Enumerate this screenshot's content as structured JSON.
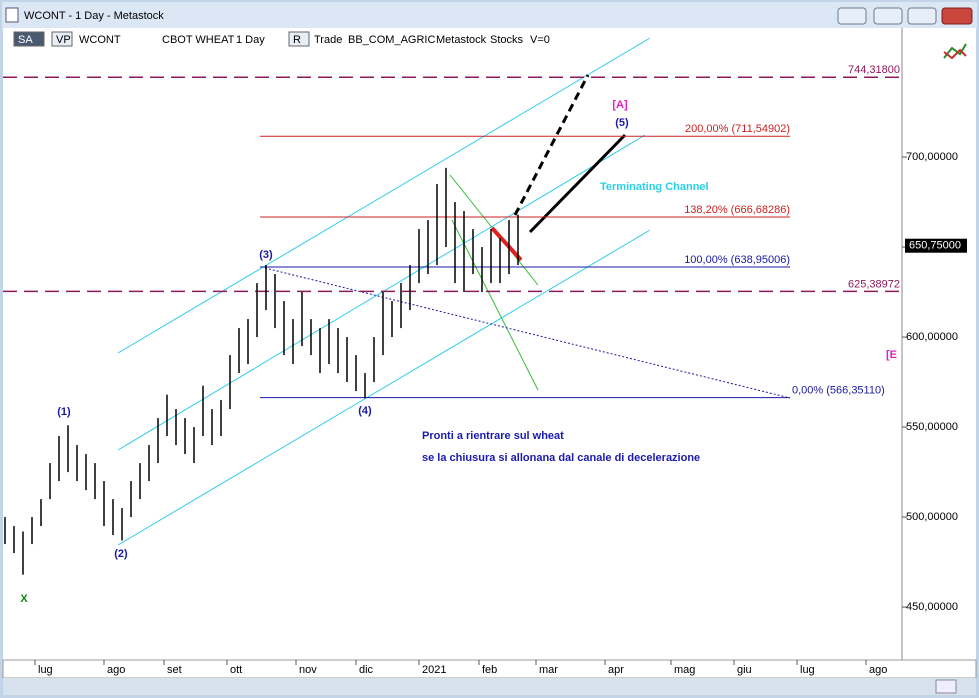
{
  "window": {
    "title": "WCONT - 1 Day - Metastock",
    "toolbar": [
      "SA",
      "VP",
      "WCONT",
      "CBOT WHEAT",
      "1 Day",
      "R",
      "Trade",
      "BB_COM_AGRIC",
      "Metastock",
      "Stocks",
      "V=0"
    ]
  },
  "chart_data": {
    "type": "ohlc",
    "x": [
      -10,
      -7,
      -4,
      -1,
      2,
      5,
      8,
      11,
      14,
      17,
      20,
      23,
      26,
      29,
      32,
      35,
      38,
      41,
      44,
      47,
      50,
      53,
      56,
      59,
      62,
      65,
      68,
      71,
      74,
      77,
      80,
      83,
      86,
      89,
      92,
      95,
      98,
      101,
      104,
      107,
      110,
      113,
      116,
      119,
      122,
      125,
      128,
      131,
      134,
      137,
      140,
      143,
      146,
      149,
      152,
      155,
      158,
      161
    ],
    "low": [
      485,
      480,
      468,
      485,
      495,
      510,
      520,
      525,
      520,
      515,
      510,
      495,
      490,
      487,
      500,
      510,
      520,
      530,
      545,
      540,
      535,
      530,
      545,
      540,
      545,
      560,
      580,
      585,
      600,
      615,
      605,
      590,
      585,
      595,
      590,
      580,
      585,
      580,
      575,
      570,
      566,
      575,
      590,
      600,
      605,
      615,
      630,
      635,
      640,
      650,
      630,
      625,
      635,
      625,
      630,
      630,
      635,
      640
    ],
    "high": [
      500,
      495,
      492,
      500,
      510,
      530,
      545,
      551,
      540,
      535,
      530,
      520,
      510,
      505,
      520,
      530,
      540,
      555,
      568,
      560,
      555,
      550,
      573,
      560,
      565,
      590,
      605,
      610,
      630,
      640,
      635,
      620,
      610,
      625,
      610,
      605,
      610,
      605,
      600,
      590,
      580,
      600,
      625,
      620,
      630,
      640,
      660,
      665,
      685,
      694,
      675,
      670,
      660,
      650,
      660,
      655,
      665,
      668
    ],
    "xlim": [
      -10,
      289
    ],
    "xticks": [
      {
        "value": 0,
        "label": "lug"
      },
      {
        "value": 23,
        "label": "ago"
      },
      {
        "value": 43,
        "label": "set"
      },
      {
        "value": 64,
        "label": "ott"
      },
      {
        "value": 87,
        "label": "nov"
      },
      {
        "value": 107,
        "label": "dic"
      },
      {
        "value": 128,
        "label": "2021"
      },
      {
        "value": 148,
        "label": "feb"
      },
      {
        "value": 167,
        "label": "mar"
      },
      {
        "value": 190,
        "label": "apr"
      },
      {
        "value": 212,
        "label": "mag"
      },
      {
        "value": 233,
        "label": "giu"
      },
      {
        "value": 254,
        "label": "lug"
      },
      {
        "value": 277,
        "label": "ago"
      }
    ],
    "ylim": [
      420.6,
      771.7
    ],
    "yticks": [
      {
        "value": 450,
        "label": "450,00000"
      },
      {
        "value": 500,
        "label": "500,00000"
      },
      {
        "value": 550,
        "label": "550,00000"
      },
      {
        "value": 600,
        "label": "600,00000"
      },
      {
        "value": 650,
        "label": "650,00000"
      },
      {
        "value": 700,
        "label": "700,00000"
      }
    ],
    "color": "#000000",
    "last_price": {
      "value": 650.75,
      "label": "650,75000"
    },
    "levels": [
      {
        "value": 744.318,
        "label": "744,31800",
        "color": "#8b1a5a",
        "style": "dashed"
      },
      {
        "value": 625.38972,
        "label": "625,38972",
        "color": "#8b1a5a",
        "style": "dashed"
      },
      {
        "value": 711.54902,
        "label": "200,00% (711,54902)",
        "color": "#cc2222",
        "style": "solid"
      },
      {
        "value": 666.68286,
        "label": "138,20% (666,68286)",
        "color": "#cc2222",
        "style": "solid"
      },
      {
        "value": 638.95006,
        "label": "100,00% (638,95006)",
        "color": "#1a1aa0",
        "style": "solid"
      },
      {
        "value": 566.3511,
        "label": "0,00% (566,35110)",
        "color": "#1a1aa0",
        "style": "solid"
      }
    ],
    "annotations": [
      {
        "text": "(1)",
        "color": "#1a1aa0"
      },
      {
        "text": "(2)",
        "color": "#1a1aa0"
      },
      {
        "text": "(3)",
        "color": "#1a1aa0"
      },
      {
        "text": "(4)",
        "color": "#1a1aa0"
      },
      {
        "text": "(5)",
        "color": "#1a1aa0"
      },
      {
        "text": "[A]",
        "color": "#e020c0"
      },
      {
        "text": "X",
        "color": "#0a8a0a"
      },
      {
        "text": "[E",
        "color": "#e020c0"
      },
      {
        "text": "Terminating Channel",
        "color": "#2ad0e8"
      },
      {
        "text": "Pronti a rientrare sul wheat",
        "color": "#1a1ab0"
      },
      {
        "text": "se la chiusura si allonana dal canale di decelerazione",
        "color": "#1a1ab0"
      }
    ]
  }
}
